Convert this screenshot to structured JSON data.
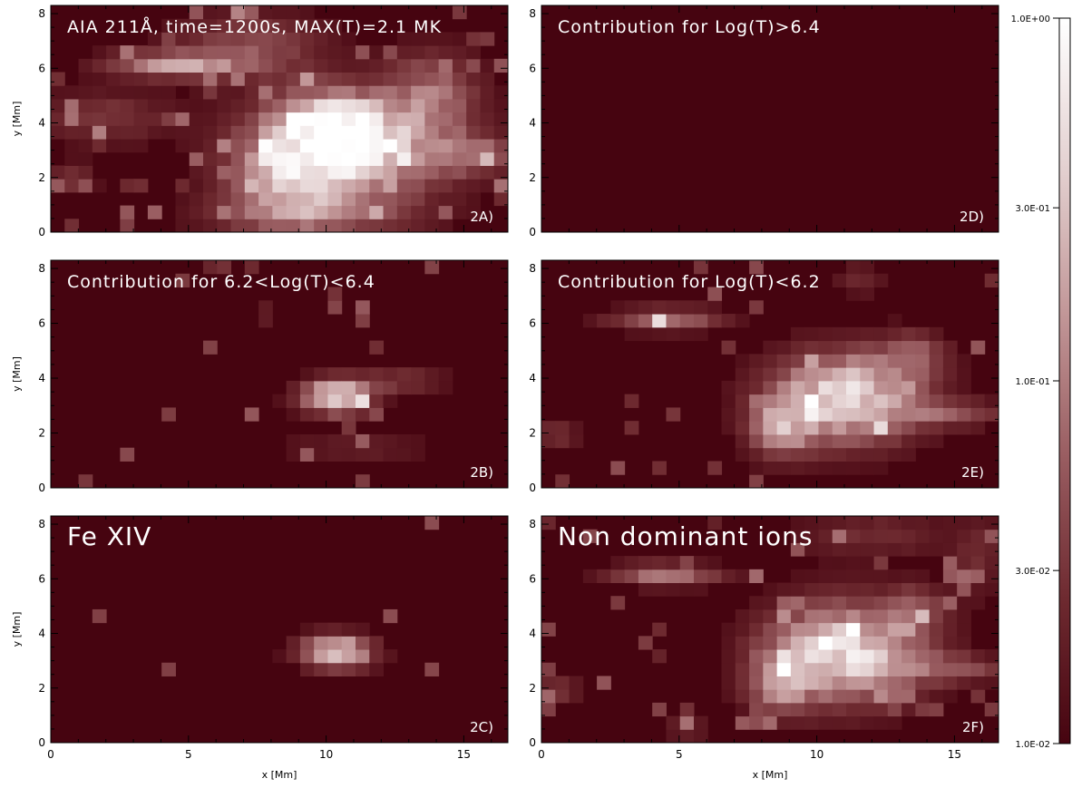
{
  "figure": {
    "colorbar": {
      "ticks": [
        "1.0E+00",
        "3.0E-01",
        "1.0E-01",
        "3.0E-02",
        "1.0E-02"
      ],
      "tick_values": [
        1.0,
        0.3,
        0.1,
        0.03,
        0.01
      ],
      "scale": "log",
      "colormap": [
        "#460410",
        "#6e2a30",
        "#9a5e62",
        "#c3999a",
        "#e4d2d2",
        "#ffffff"
      ]
    },
    "axes": {
      "xlabel": "x [Mm]",
      "ylabel": "y [Mm]",
      "xticks": [
        "0",
        "5",
        "10",
        "15"
      ],
      "yticks": [
        "0",
        "2",
        "4",
        "6",
        "8"
      ],
      "xlim": [
        0,
        16.6
      ],
      "ylim": [
        0,
        8.3
      ]
    }
  },
  "chart_data": [
    {
      "type": "heatmap",
      "panel_id": "2A)",
      "annotation": "AIA 211Å, time=1200s, MAX(T)=2.1 MK",
      "blobs": [
        {
          "x": 11.0,
          "y": 3.2,
          "sx": 2.4,
          "sy": 1.3,
          "a": 0.85
        },
        {
          "x": 10.0,
          "y": 4.3,
          "sx": 1.3,
          "sy": 0.8,
          "a": 0.45
        },
        {
          "x": 8.6,
          "y": 2.0,
          "sx": 1.6,
          "sy": 1.2,
          "a": 0.5
        },
        {
          "x": 4.5,
          "y": 6.3,
          "sx": 1.8,
          "sy": 0.35,
          "a": 0.55
        },
        {
          "x": 13.8,
          "y": 5.4,
          "sx": 1.2,
          "sy": 1.1,
          "a": 0.35
        },
        {
          "x": 15.5,
          "y": 2.9,
          "sx": 1.0,
          "sy": 0.5,
          "a": 0.35
        },
        {
          "x": 1.8,
          "y": 4.3,
          "sx": 1.8,
          "sy": 0.7,
          "a": 0.25
        },
        {
          "x": 0.8,
          "y": 2.0,
          "sx": 0.6,
          "sy": 0.4,
          "a": 0.25
        },
        {
          "x": 7.2,
          "y": 7.0,
          "sx": 2.0,
          "sy": 0.9,
          "a": 0.3
        },
        {
          "x": 9.5,
          "y": 0.6,
          "sx": 2.8,
          "sy": 0.5,
          "a": 0.3
        }
      ],
      "noise": 0.3,
      "seed": 11
    },
    {
      "type": "heatmap",
      "panel_id": "2B)",
      "annotation": "Contribution for 6.2<Log(T)<6.4",
      "blobs": [
        {
          "x": 10.3,
          "y": 3.4,
          "sx": 0.9,
          "sy": 0.45,
          "a": 0.85
        },
        {
          "x": 12.6,
          "y": 4.0,
          "sx": 1.2,
          "sy": 0.25,
          "a": 0.3
        },
        {
          "x": 11.0,
          "y": 1.5,
          "sx": 2.0,
          "sy": 0.25,
          "a": 0.2
        },
        {
          "x": 7.7,
          "y": 6.5,
          "sx": 0.2,
          "sy": 0.3,
          "a": 0.15
        }
      ],
      "noise": 0.08,
      "seed": 23
    },
    {
      "type": "heatmap",
      "panel_id": "2C)",
      "annotation": "Fe XIV",
      "blobs": [
        {
          "x": 10.3,
          "y": 3.4,
          "sx": 0.9,
          "sy": 0.45,
          "a": 0.85
        }
      ],
      "noise": 0.03,
      "seed": 31
    },
    {
      "type": "heatmap",
      "panel_id": "2D)",
      "annotation": "Contribution for Log(T)>6.4",
      "blobs": [],
      "noise": 0.0,
      "seed": 41
    },
    {
      "type": "heatmap",
      "panel_id": "2E)",
      "annotation": "Contribution for Log(T)<6.2",
      "blobs": [
        {
          "x": 11.0,
          "y": 3.4,
          "sx": 1.9,
          "sy": 1.2,
          "a": 0.85
        },
        {
          "x": 4.5,
          "y": 6.3,
          "sx": 1.4,
          "sy": 0.3,
          "a": 0.5
        },
        {
          "x": 8.6,
          "y": 2.2,
          "sx": 0.8,
          "sy": 0.8,
          "a": 0.45
        },
        {
          "x": 15.0,
          "y": 2.8,
          "sx": 1.3,
          "sy": 0.35,
          "a": 0.3
        },
        {
          "x": 13.5,
          "y": 5.0,
          "sx": 0.8,
          "sy": 0.6,
          "a": 0.3
        },
        {
          "x": 0.6,
          "y": 2.0,
          "sx": 0.5,
          "sy": 0.3,
          "a": 0.3
        },
        {
          "x": 11.5,
          "y": 7.8,
          "sx": 0.6,
          "sy": 0.4,
          "a": 0.2
        }
      ],
      "noise": 0.15,
      "seed": 53
    },
    {
      "type": "heatmap",
      "panel_id": "2F)",
      "annotation": "Non dominant ions",
      "blobs": [
        {
          "x": 11.0,
          "y": 3.4,
          "sx": 2.0,
          "sy": 1.3,
          "a": 0.85
        },
        {
          "x": 4.5,
          "y": 6.3,
          "sx": 1.4,
          "sy": 0.3,
          "a": 0.5
        },
        {
          "x": 8.6,
          "y": 2.2,
          "sx": 0.8,
          "sy": 0.8,
          "a": 0.45
        },
        {
          "x": 15.0,
          "y": 2.8,
          "sx": 1.3,
          "sy": 0.35,
          "a": 0.3
        },
        {
          "x": 13.5,
          "y": 5.0,
          "sx": 0.8,
          "sy": 0.6,
          "a": 0.3
        },
        {
          "x": 0.6,
          "y": 2.0,
          "sx": 0.5,
          "sy": 0.3,
          "a": 0.3
        },
        {
          "x": 12.0,
          "y": 7.8,
          "sx": 2.0,
          "sy": 0.6,
          "a": 0.2
        },
        {
          "x": 15.8,
          "y": 7.0,
          "sx": 0.6,
          "sy": 1.0,
          "a": 0.2
        },
        {
          "x": 5.2,
          "y": 0.5,
          "sx": 0.6,
          "sy": 0.3,
          "a": 0.2
        }
      ],
      "noise": 0.2,
      "seed": 67
    }
  ]
}
